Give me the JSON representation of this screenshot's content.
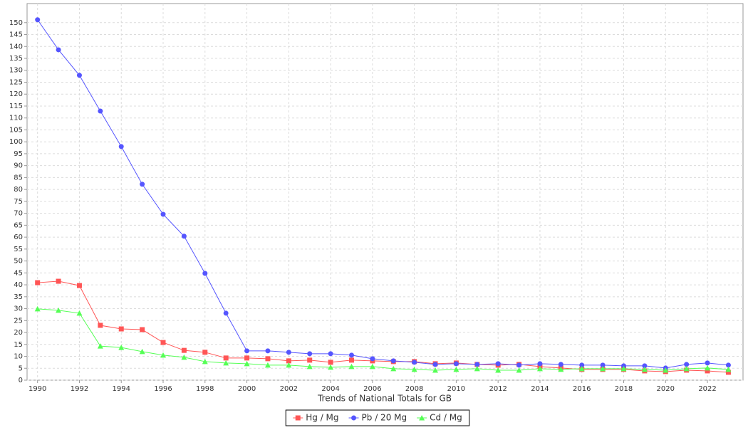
{
  "chart_data": {
    "type": "line",
    "xlabel": "Trends of National Totals for GB",
    "x": [
      1990,
      1991,
      1992,
      1993,
      1994,
      1995,
      1996,
      1997,
      1998,
      1999,
      2000,
      2001,
      2002,
      2003,
      2004,
      2005,
      2006,
      2007,
      2008,
      2009,
      2010,
      2011,
      2012,
      2013,
      2014,
      2015,
      2016,
      2017,
      2018,
      2019,
      2020,
      2021,
      2022,
      2023
    ],
    "series": [
      {
        "name": "Hg / Mg",
        "color": "#ff5555",
        "marker": "square",
        "values": [
          40.9,
          41.5,
          39.7,
          23.0,
          21.5,
          21.2,
          15.8,
          12.5,
          11.7,
          9.3,
          9.3,
          9.0,
          8.1,
          8.4,
          7.5,
          8.4,
          8.1,
          7.8,
          7.8,
          6.9,
          7.2,
          6.6,
          6.3,
          6.6,
          5.7,
          5.1,
          4.5,
          4.5,
          4.5,
          3.9,
          3.6,
          4.2,
          3.9,
          3.3
        ]
      },
      {
        "name": "Pb / 20 Mg",
        "color": "#5555ff",
        "marker": "circle",
        "values": [
          151.2,
          138.6,
          127.9,
          112.9,
          98.0,
          82.2,
          69.6,
          60.4,
          44.8,
          28.1,
          12.3,
          12.3,
          11.7,
          11.1,
          11.1,
          10.5,
          9.0,
          8.1,
          7.5,
          6.6,
          6.9,
          6.6,
          6.9,
          6.3,
          6.9,
          6.6,
          6.3,
          6.3,
          6.0,
          6.0,
          5.1,
          6.6,
          7.2,
          6.3
        ]
      },
      {
        "name": "Cd / Mg",
        "color": "#55ff55",
        "marker": "triangle",
        "values": [
          29.9,
          29.3,
          28.1,
          14.3,
          13.7,
          12.0,
          10.5,
          9.6,
          7.8,
          7.2,
          6.9,
          6.3,
          6.3,
          5.7,
          5.4,
          5.7,
          5.7,
          4.8,
          4.5,
          4.2,
          4.5,
          4.8,
          4.2,
          4.2,
          4.8,
          4.5,
          4.8,
          4.8,
          4.8,
          4.5,
          4.2,
          4.8,
          5.1,
          4.5
        ]
      }
    ],
    "xlim": [
      1989.5,
      2023.7
    ],
    "xticks": [
      1990,
      1992,
      1994,
      1996,
      1998,
      2000,
      2002,
      2004,
      2006,
      2008,
      2010,
      2012,
      2014,
      2016,
      2018,
      2020,
      2022
    ],
    "ylim": [
      0,
      158
    ],
    "yticks": [
      0,
      5,
      10,
      15,
      20,
      25,
      30,
      35,
      40,
      45,
      50,
      55,
      60,
      65,
      70,
      75,
      80,
      85,
      90,
      95,
      100,
      105,
      110,
      115,
      120,
      125,
      130,
      135,
      140,
      145,
      150
    ],
    "grid": true,
    "legend": "bottom"
  }
}
